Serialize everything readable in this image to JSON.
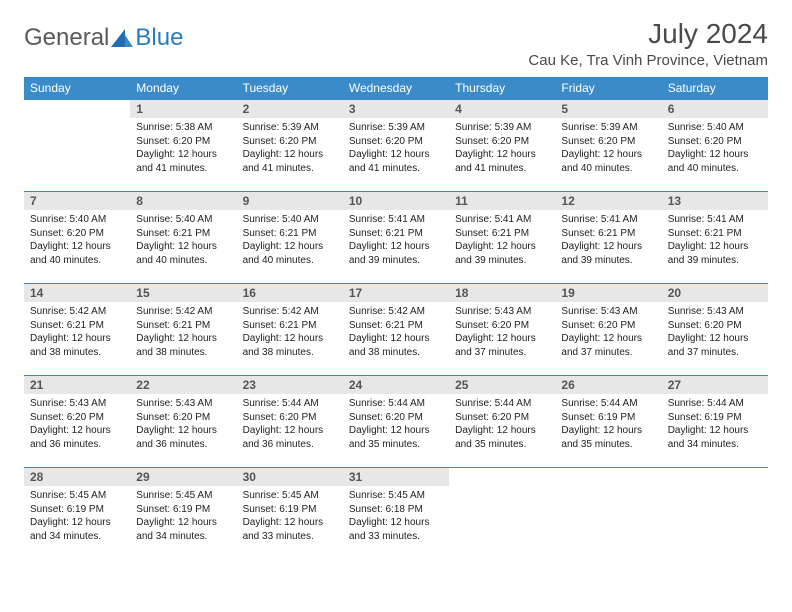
{
  "logo": {
    "text1": "General",
    "text2": "Blue"
  },
  "title": "July 2024",
  "location": "Cau Ke, Tra Vinh Province, Vietnam",
  "colors": {
    "header_bg": "#3b8bc9",
    "header_text": "#ffffff",
    "daynum_bg": "#e7e7e7",
    "daynum_text": "#555555",
    "border": "#3b8bc9",
    "logo_gray": "#5a5a5a",
    "logo_blue": "#2b7bbf",
    "body_text": "#222222",
    "page_bg": "#ffffff"
  },
  "typography": {
    "title_fontsize": 28,
    "location_fontsize": 15,
    "header_fontsize": 12,
    "daynum_fontsize": 12,
    "body_fontsize": 10,
    "logo_fontsize": 24
  },
  "day_headers": [
    "Sunday",
    "Monday",
    "Tuesday",
    "Wednesday",
    "Thursday",
    "Friday",
    "Saturday"
  ],
  "weeks": [
    [
      {
        "n": "",
        "sr": "",
        "ss": "",
        "dl": ""
      },
      {
        "n": "1",
        "sr": "Sunrise: 5:38 AM",
        "ss": "Sunset: 6:20 PM",
        "dl": "Daylight: 12 hours and 41 minutes."
      },
      {
        "n": "2",
        "sr": "Sunrise: 5:39 AM",
        "ss": "Sunset: 6:20 PM",
        "dl": "Daylight: 12 hours and 41 minutes."
      },
      {
        "n": "3",
        "sr": "Sunrise: 5:39 AM",
        "ss": "Sunset: 6:20 PM",
        "dl": "Daylight: 12 hours and 41 minutes."
      },
      {
        "n": "4",
        "sr": "Sunrise: 5:39 AM",
        "ss": "Sunset: 6:20 PM",
        "dl": "Daylight: 12 hours and 41 minutes."
      },
      {
        "n": "5",
        "sr": "Sunrise: 5:39 AM",
        "ss": "Sunset: 6:20 PM",
        "dl": "Daylight: 12 hours and 40 minutes."
      },
      {
        "n": "6",
        "sr": "Sunrise: 5:40 AM",
        "ss": "Sunset: 6:20 PM",
        "dl": "Daylight: 12 hours and 40 minutes."
      }
    ],
    [
      {
        "n": "7",
        "sr": "Sunrise: 5:40 AM",
        "ss": "Sunset: 6:20 PM",
        "dl": "Daylight: 12 hours and 40 minutes."
      },
      {
        "n": "8",
        "sr": "Sunrise: 5:40 AM",
        "ss": "Sunset: 6:21 PM",
        "dl": "Daylight: 12 hours and 40 minutes."
      },
      {
        "n": "9",
        "sr": "Sunrise: 5:40 AM",
        "ss": "Sunset: 6:21 PM",
        "dl": "Daylight: 12 hours and 40 minutes."
      },
      {
        "n": "10",
        "sr": "Sunrise: 5:41 AM",
        "ss": "Sunset: 6:21 PM",
        "dl": "Daylight: 12 hours and 39 minutes."
      },
      {
        "n": "11",
        "sr": "Sunrise: 5:41 AM",
        "ss": "Sunset: 6:21 PM",
        "dl": "Daylight: 12 hours and 39 minutes."
      },
      {
        "n": "12",
        "sr": "Sunrise: 5:41 AM",
        "ss": "Sunset: 6:21 PM",
        "dl": "Daylight: 12 hours and 39 minutes."
      },
      {
        "n": "13",
        "sr": "Sunrise: 5:41 AM",
        "ss": "Sunset: 6:21 PM",
        "dl": "Daylight: 12 hours and 39 minutes."
      }
    ],
    [
      {
        "n": "14",
        "sr": "Sunrise: 5:42 AM",
        "ss": "Sunset: 6:21 PM",
        "dl": "Daylight: 12 hours and 38 minutes."
      },
      {
        "n": "15",
        "sr": "Sunrise: 5:42 AM",
        "ss": "Sunset: 6:21 PM",
        "dl": "Daylight: 12 hours and 38 minutes."
      },
      {
        "n": "16",
        "sr": "Sunrise: 5:42 AM",
        "ss": "Sunset: 6:21 PM",
        "dl": "Daylight: 12 hours and 38 minutes."
      },
      {
        "n": "17",
        "sr": "Sunrise: 5:42 AM",
        "ss": "Sunset: 6:21 PM",
        "dl": "Daylight: 12 hours and 38 minutes."
      },
      {
        "n": "18",
        "sr": "Sunrise: 5:43 AM",
        "ss": "Sunset: 6:20 PM",
        "dl": "Daylight: 12 hours and 37 minutes."
      },
      {
        "n": "19",
        "sr": "Sunrise: 5:43 AM",
        "ss": "Sunset: 6:20 PM",
        "dl": "Daylight: 12 hours and 37 minutes."
      },
      {
        "n": "20",
        "sr": "Sunrise: 5:43 AM",
        "ss": "Sunset: 6:20 PM",
        "dl": "Daylight: 12 hours and 37 minutes."
      }
    ],
    [
      {
        "n": "21",
        "sr": "Sunrise: 5:43 AM",
        "ss": "Sunset: 6:20 PM",
        "dl": "Daylight: 12 hours and 36 minutes."
      },
      {
        "n": "22",
        "sr": "Sunrise: 5:43 AM",
        "ss": "Sunset: 6:20 PM",
        "dl": "Daylight: 12 hours and 36 minutes."
      },
      {
        "n": "23",
        "sr": "Sunrise: 5:44 AM",
        "ss": "Sunset: 6:20 PM",
        "dl": "Daylight: 12 hours and 36 minutes."
      },
      {
        "n": "24",
        "sr": "Sunrise: 5:44 AM",
        "ss": "Sunset: 6:20 PM",
        "dl": "Daylight: 12 hours and 35 minutes."
      },
      {
        "n": "25",
        "sr": "Sunrise: 5:44 AM",
        "ss": "Sunset: 6:20 PM",
        "dl": "Daylight: 12 hours and 35 minutes."
      },
      {
        "n": "26",
        "sr": "Sunrise: 5:44 AM",
        "ss": "Sunset: 6:19 PM",
        "dl": "Daylight: 12 hours and 35 minutes."
      },
      {
        "n": "27",
        "sr": "Sunrise: 5:44 AM",
        "ss": "Sunset: 6:19 PM",
        "dl": "Daylight: 12 hours and 34 minutes."
      }
    ],
    [
      {
        "n": "28",
        "sr": "Sunrise: 5:45 AM",
        "ss": "Sunset: 6:19 PM",
        "dl": "Daylight: 12 hours and 34 minutes."
      },
      {
        "n": "29",
        "sr": "Sunrise: 5:45 AM",
        "ss": "Sunset: 6:19 PM",
        "dl": "Daylight: 12 hours and 34 minutes."
      },
      {
        "n": "30",
        "sr": "Sunrise: 5:45 AM",
        "ss": "Sunset: 6:19 PM",
        "dl": "Daylight: 12 hours and 33 minutes."
      },
      {
        "n": "31",
        "sr": "Sunrise: 5:45 AM",
        "ss": "Sunset: 6:18 PM",
        "dl": "Daylight: 12 hours and 33 minutes."
      },
      {
        "n": "",
        "sr": "",
        "ss": "",
        "dl": ""
      },
      {
        "n": "",
        "sr": "",
        "ss": "",
        "dl": ""
      },
      {
        "n": "",
        "sr": "",
        "ss": "",
        "dl": ""
      }
    ]
  ]
}
